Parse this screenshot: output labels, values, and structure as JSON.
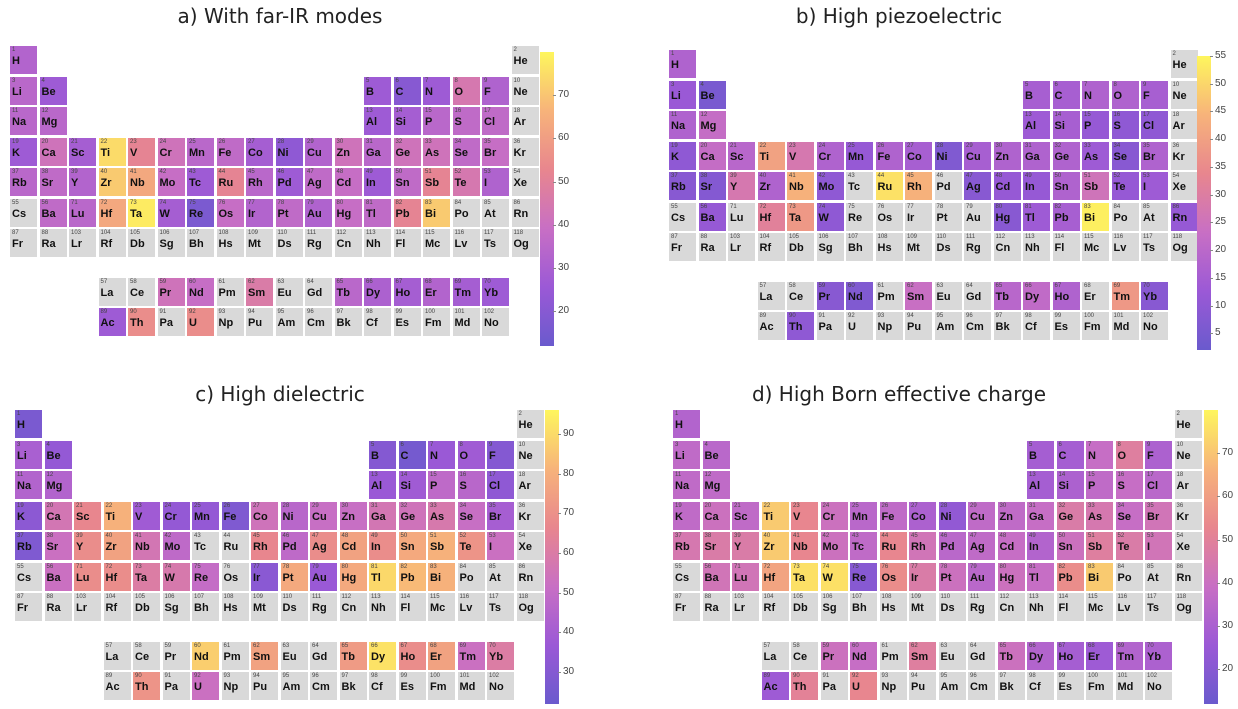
{
  "elements": [
    [
      "H",
      1
    ],
    [
      "He",
      2
    ],
    [
      "Li",
      3
    ],
    [
      "Be",
      4
    ],
    [
      "B",
      5
    ],
    [
      "C",
      6
    ],
    [
      "N",
      7
    ],
    [
      "O",
      8
    ],
    [
      "F",
      9
    ],
    [
      "Ne",
      10
    ],
    [
      "Na",
      11
    ],
    [
      "Mg",
      12
    ],
    [
      "Al",
      13
    ],
    [
      "Si",
      14
    ],
    [
      "P",
      15
    ],
    [
      "S",
      16
    ],
    [
      "Cl",
      17
    ],
    [
      "Ar",
      18
    ],
    [
      "K",
      19
    ],
    [
      "Ca",
      20
    ],
    [
      "Sc",
      21
    ],
    [
      "Ti",
      22
    ],
    [
      "V",
      23
    ],
    [
      "Cr",
      24
    ],
    [
      "Mn",
      25
    ],
    [
      "Fe",
      26
    ],
    [
      "Co",
      27
    ],
    [
      "Ni",
      28
    ],
    [
      "Cu",
      29
    ],
    [
      "Zn",
      30
    ],
    [
      "Ga",
      31
    ],
    [
      "Ge",
      32
    ],
    [
      "As",
      33
    ],
    [
      "Se",
      34
    ],
    [
      "Br",
      35
    ],
    [
      "Kr",
      36
    ],
    [
      "Rb",
      37
    ],
    [
      "Sr",
      38
    ],
    [
      "Y",
      39
    ],
    [
      "Zr",
      40
    ],
    [
      "Nb",
      41
    ],
    [
      "Mo",
      42
    ],
    [
      "Tc",
      43
    ],
    [
      "Ru",
      44
    ],
    [
      "Rh",
      45
    ],
    [
      "Pd",
      46
    ],
    [
      "Ag",
      47
    ],
    [
      "Cd",
      48
    ],
    [
      "In",
      49
    ],
    [
      "Sn",
      50
    ],
    [
      "Sb",
      51
    ],
    [
      "Te",
      52
    ],
    [
      "I",
      53
    ],
    [
      "Xe",
      54
    ],
    [
      "Cs",
      55
    ],
    [
      "Ba",
      56
    ],
    [
      "Lu",
      71
    ],
    [
      "Hf",
      72
    ],
    [
      "Ta",
      73
    ],
    [
      "W",
      74
    ],
    [
      "Re",
      75
    ],
    [
      "Os",
      76
    ],
    [
      "Ir",
      77
    ],
    [
      "Pt",
      78
    ],
    [
      "Au",
      79
    ],
    [
      "Hg",
      80
    ],
    [
      "Tl",
      81
    ],
    [
      "Pb",
      82
    ],
    [
      "Bi",
      83
    ],
    [
      "Po",
      84
    ],
    [
      "At",
      85
    ],
    [
      "Rn",
      86
    ],
    [
      "Fr",
      87
    ],
    [
      "Ra",
      88
    ],
    [
      "Lr",
      103
    ],
    [
      "Rf",
      104
    ],
    [
      "Db",
      105
    ],
    [
      "Sg",
      106
    ],
    [
      "Bh",
      107
    ],
    [
      "Hs",
      108
    ],
    [
      "Mt",
      109
    ],
    [
      "Ds",
      110
    ],
    [
      "Rg",
      111
    ],
    [
      "Cn",
      112
    ],
    [
      "Nh",
      113
    ],
    [
      "Fl",
      114
    ],
    [
      "Mc",
      115
    ],
    [
      "Lv",
      116
    ],
    [
      "Ts",
      117
    ],
    [
      "Og",
      118
    ],
    [
      "La",
      57
    ],
    [
      "Ce",
      58
    ],
    [
      "Pr",
      59
    ],
    [
      "Nd",
      60
    ],
    [
      "Pm",
      61
    ],
    [
      "Sm",
      62
    ],
    [
      "Eu",
      63
    ],
    [
      "Gd",
      64
    ],
    [
      "Tb",
      65
    ],
    [
      "Dy",
      66
    ],
    [
      "Ho",
      67
    ],
    [
      "Er",
      68
    ],
    [
      "Tm",
      69
    ],
    [
      "Yb",
      70
    ],
    [
      "Ac",
      89
    ],
    [
      "Th",
      90
    ],
    [
      "Pa",
      91
    ],
    [
      "U",
      92
    ],
    [
      "Np",
      93
    ],
    [
      "Pu",
      94
    ],
    [
      "Am",
      95
    ],
    [
      "Cm",
      96
    ],
    [
      "Bk",
      97
    ],
    [
      "Cf",
      98
    ],
    [
      "Es",
      99
    ],
    [
      "Fm",
      100
    ],
    [
      "Md",
      101
    ],
    [
      "No",
      102
    ]
  ],
  "chart_data": [
    {
      "type": "heatmap",
      "title": "a) With far-IR modes",
      "colorbar": {
        "range": [
          12,
          80
        ],
        "ticks": [
          20,
          30,
          40,
          50,
          60,
          70
        ]
      },
      "values": {
        "H": 36,
        "Li": 38,
        "Be": 30,
        "B": 30,
        "C": 22,
        "N": 30,
        "O": 48,
        "F": 35,
        "Na": 38,
        "Mg": 38,
        "Al": 30,
        "Si": 32,
        "P": 38,
        "S": 40,
        "Cl": 40,
        "K": 30,
        "Ca": 45,
        "Sc": 32,
        "Ti": 75,
        "V": 55,
        "Cr": 45,
        "Mn": 38,
        "Fe": 40,
        "Co": 32,
        "Ni": 25,
        "Cu": 36,
        "Zn": 45,
        "Ga": 38,
        "Ge": 45,
        "As": 45,
        "Se": 40,
        "Br": 42,
        "Rb": 38,
        "Sr": 40,
        "Y": 36,
        "Zr": 72,
        "Nb": 65,
        "Mo": 42,
        "Tc": 30,
        "Ru": 55,
        "Rh": 38,
        "Pd": 30,
        "Ag": 40,
        "Cd": 42,
        "In": 30,
        "Sn": 40,
        "Sb": 55,
        "Te": 48,
        "I": 35,
        "Ba": 40,
        "Lu": 38,
        "Hf": 65,
        "Ta": 78,
        "W": 32,
        "Re": 18,
        "Os": 42,
        "Ir": 36,
        "Pt": 40,
        "Au": 35,
        "Hg": 42,
        "Tl": 40,
        "Pb": 55,
        "Bi": 72,
        "Pr": 45,
        "Nd": 42,
        "Sm": 50,
        "Tb": 38,
        "Dy": 34,
        "Ho": 32,
        "Er": 36,
        "Tm": 32,
        "Yb": 30,
        "Ac": 30,
        "Th": 58,
        "U": 58
      }
    },
    {
      "type": "heatmap",
      "title": "b) High piezoelectric",
      "colorbar": {
        "range": [
          2,
          55
        ],
        "ticks": [
          5,
          10,
          15,
          20,
          25,
          30,
          35,
          40,
          45,
          50,
          55
        ]
      },
      "values": {
        "H": 20,
        "Li": 15,
        "Be": 6,
        "B": 18,
        "C": 18,
        "N": 20,
        "O": 20,
        "F": 18,
        "Na": 20,
        "Mg": 25,
        "Al": 16,
        "Si": 18,
        "P": 14,
        "S": 12,
        "Cl": 12,
        "K": 12,
        "Ca": 25,
        "Sc": 22,
        "Ti": 42,
        "V": 30,
        "Cr": 20,
        "Mn": 14,
        "Fe": 20,
        "Co": 18,
        "Ni": 8,
        "Cu": 18,
        "Zn": 20,
        "Ga": 20,
        "Ge": 20,
        "As": 16,
        "Se": 10,
        "Br": 20,
        "Rb": 10,
        "Sr": 9,
        "Y": 30,
        "Zr": 20,
        "Nb": 45,
        "Mo": 12,
        "Ru": 52,
        "Rh": 45,
        "Ag": 10,
        "Cd": 14,
        "In": 14,
        "Sn": 20,
        "Sb": 28,
        "Te": 14,
        "I": 16,
        "Ba": 14,
        "Hf": 34,
        "Ta": 40,
        "W": 12,
        "Hg": 10,
        "Tl": 16,
        "Pb": 18,
        "Bi": 54,
        "Rn": 14,
        "Pr": 10,
        "Nd": 8,
        "Sm": 26,
        "Tb": 22,
        "Dy": 24,
        "Ho": 20,
        "Tm": 40,
        "Yb": 10,
        "Th": 12
      }
    },
    {
      "type": "heatmap",
      "title": "c) High dielectric",
      "colorbar": {
        "range": [
          22,
          96
        ],
        "ticks": [
          30,
          40,
          50,
          60,
          70,
          80,
          90
        ]
      },
      "values": {
        "H": 28,
        "Li": 45,
        "Be": 38,
        "B": 32,
        "C": 26,
        "N": 40,
        "O": 42,
        "F": 32,
        "Na": 48,
        "Mg": 48,
        "Al": 40,
        "Si": 42,
        "P": 52,
        "S": 50,
        "Cl": 36,
        "K": 35,
        "Ca": 60,
        "Sc": 70,
        "Ti": 82,
        "V": 42,
        "Cr": 38,
        "Mn": 38,
        "Fe": 30,
        "Co": 58,
        "Ni": 50,
        "Cu": 55,
        "Zn": 55,
        "Ga": 60,
        "Ge": 58,
        "As": 62,
        "Se": 55,
        "Br": 44,
        "Rb": 30,
        "Sr": 56,
        "Y": 72,
        "Zr": 78,
        "Nb": 60,
        "Mo": 52,
        "Rh": 70,
        "Pd": 52,
        "Ag": 72,
        "Cd": 78,
        "In": 72,
        "Sn": 80,
        "Sb": 82,
        "Te": 74,
        "I": 56,
        "Ba": 56,
        "Lu": 72,
        "Hf": 72,
        "Ta": 64,
        "W": 62,
        "Re": 54,
        "Ir": 34,
        "Pt": 80,
        "Au": 40,
        "Hg": 80,
        "Tl": 90,
        "Pb": 84,
        "Bi": 82,
        "Nd": 88,
        "Sm": 78,
        "Tb": 76,
        "Dy": 92,
        "Ho": 72,
        "Er": 78,
        "Tm": 56,
        "Yb": 64,
        "Th": 74,
        "U": 56
      }
    },
    {
      "type": "heatmap",
      "title": "d) High Born effective charge",
      "colorbar": {
        "range": [
          12,
          80
        ],
        "ticks": [
          20,
          30,
          40,
          50,
          60,
          70
        ]
      },
      "values": {
        "H": 36,
        "Li": 40,
        "Be": 38,
        "B": 32,
        "C": 32,
        "N": 42,
        "O": 52,
        "F": 34,
        "Na": 40,
        "Mg": 40,
        "Al": 32,
        "Si": 34,
        "P": 40,
        "S": 42,
        "Cl": 38,
        "K": 40,
        "Ca": 44,
        "Sc": 40,
        "Ti": 72,
        "V": 56,
        "Cr": 44,
        "Mn": 38,
        "Fe": 40,
        "Co": 34,
        "Ni": 26,
        "Cu": 40,
        "Zn": 40,
        "Ga": 42,
        "Ge": 50,
        "As": 48,
        "Se": 42,
        "Br": 46,
        "Rb": 48,
        "Sr": 50,
        "Y": 50,
        "Zr": 72,
        "Nb": 56,
        "Mo": 44,
        "Tc": 40,
        "Ru": 56,
        "Rh": 46,
        "Pd": 38,
        "Ag": 40,
        "Cd": 42,
        "In": 36,
        "Sn": 44,
        "Sb": 52,
        "Te": 50,
        "I": 46,
        "Ba": 46,
        "Lu": 46,
        "Hf": 64,
        "Ta": 76,
        "W": 76,
        "Re": 22,
        "Os": 58,
        "Ir": 50,
        "Pt": 44,
        "Au": 38,
        "Hg": 44,
        "Tl": 42,
        "Pb": 58,
        "Bi": 72,
        "Pr": 44,
        "Nd": 42,
        "Sm": 52,
        "Tb": 44,
        "Dy": 36,
        "Ho": 32,
        "Er": 30,
        "Tm": 36,
        "Yb": 34,
        "Ac": 30,
        "Th": 54,
        "U": 56
      }
    }
  ]
}
